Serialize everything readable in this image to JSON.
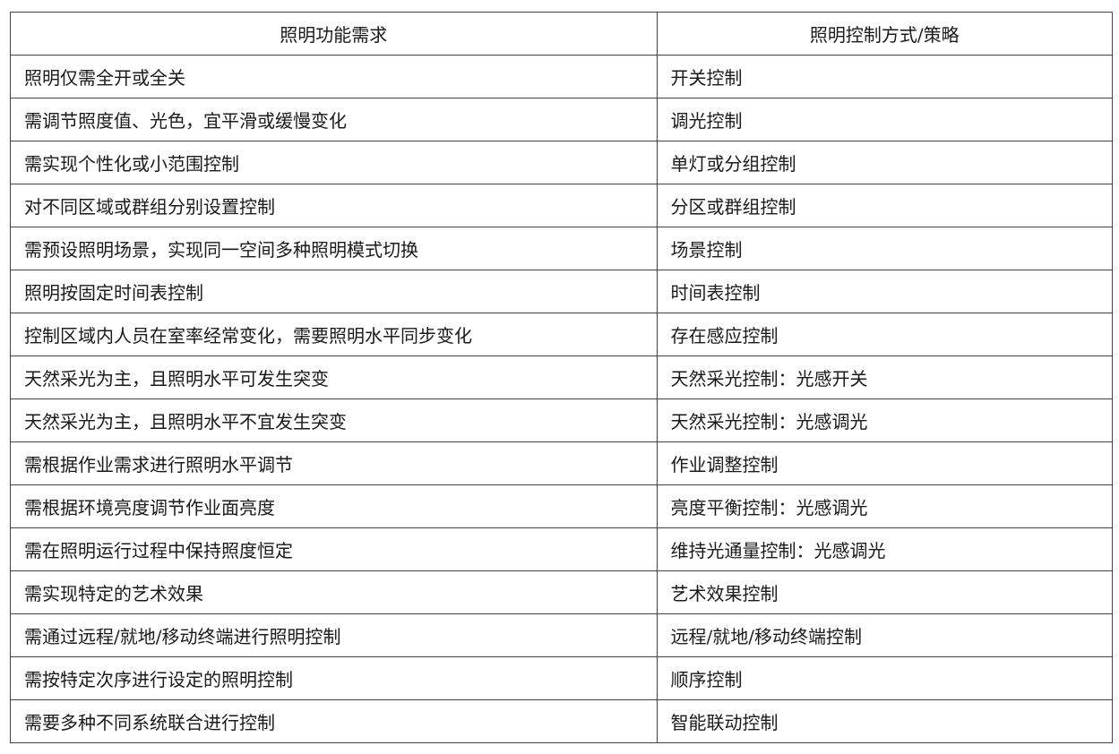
{
  "table": {
    "headers": [
      "照明功能需求",
      "照明控制方式/策略"
    ],
    "rows": [
      [
        "照明仅需全开或全关",
        "开关控制"
      ],
      [
        "需调节照度值、光色，宜平滑或缓慢变化",
        "调光控制"
      ],
      [
        "需实现个性化或小范围控制",
        "单灯或分组控制"
      ],
      [
        "对不同区域或群组分别设置控制",
        "分区或群组控制"
      ],
      [
        "需预设照明场景，实现同一空间多种照明模式切换",
        "场景控制"
      ],
      [
        "照明按固定时间表控制",
        "时间表控制"
      ],
      [
        "控制区域内人员在室率经常变化，需要照明水平同步变化",
        "存在感应控制"
      ],
      [
        "天然采光为主，且照明水平可发生突变",
        "天然采光控制：光感开关"
      ],
      [
        "天然采光为主，且照明水平不宜发生突变",
        "天然采光控制：光感调光"
      ],
      [
        "需根据作业需求进行照明水平调节",
        "作业调整控制"
      ],
      [
        "需根据环境亮度调节作业面亮度",
        "亮度平衡控制：光感调光"
      ],
      [
        "需在照明运行过程中保持照度恒定",
        "维持光通量控制：光感调光"
      ],
      [
        "需实现特定的艺术效果",
        "艺术效果控制"
      ],
      [
        "需通过远程/就地/移动终端进行照明控制",
        "远程/就地/移动终端控制"
      ],
      [
        "需按特定次序进行设定的照明控制",
        "顺序控制"
      ],
      [
        "需要多种不同系统联合进行控制",
        "智能联动控制"
      ]
    ]
  }
}
